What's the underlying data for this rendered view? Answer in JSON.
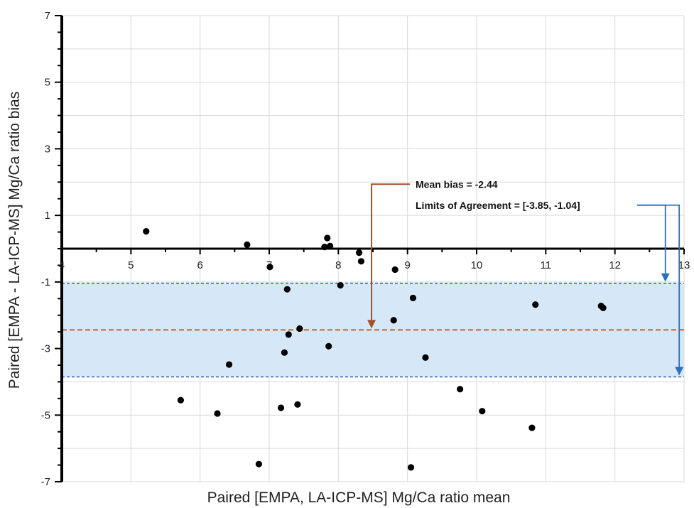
{
  "chart_data": {
    "type": "scatter",
    "xlabel": "Paired [EMPA, LA-ICP-MS] Mg/Ca ratio mean",
    "ylabel": "Paired [EMPA - LA-ICP-MS] Mg/Ca ratio bias",
    "xlim": [
      4,
      13
    ],
    "ylim": [
      -7,
      7
    ],
    "x_ticks": [
      "4",
      "5",
      "6",
      "7",
      "8",
      "9",
      "10",
      "11",
      "12",
      "13"
    ],
    "y_ticks": [
      "-7",
      "-5",
      "-3",
      "-1",
      "1",
      "3",
      "5",
      "7"
    ],
    "grid": true,
    "points": [
      {
        "x": 5.22,
        "y": 0.52
      },
      {
        "x": 5.72,
        "y": -4.55
      },
      {
        "x": 6.25,
        "y": -4.95
      },
      {
        "x": 6.42,
        "y": -3.48
      },
      {
        "x": 6.68,
        "y": 0.12
      },
      {
        "x": 6.85,
        "y": -6.47
      },
      {
        "x": 7.01,
        "y": -0.55
      },
      {
        "x": 7.17,
        "y": -4.78
      },
      {
        "x": 7.22,
        "y": -3.12
      },
      {
        "x": 7.26,
        "y": -1.22
      },
      {
        "x": 7.28,
        "y": -2.58
      },
      {
        "x": 7.41,
        "y": -4.68
      },
      {
        "x": 7.44,
        "y": -2.4
      },
      {
        "x": 7.8,
        "y": 0.05
      },
      {
        "x": 7.84,
        "y": 0.32
      },
      {
        "x": 7.86,
        "y": -2.93
      },
      {
        "x": 7.88,
        "y": 0.08
      },
      {
        "x": 8.03,
        "y": -1.1
      },
      {
        "x": 8.3,
        "y": -0.12
      },
      {
        "x": 8.33,
        "y": -0.38
      },
      {
        "x": 8.8,
        "y": -2.15
      },
      {
        "x": 8.82,
        "y": -0.63
      },
      {
        "x": 9.05,
        "y": -6.57
      },
      {
        "x": 9.08,
        "y": -1.48
      },
      {
        "x": 9.26,
        "y": -3.27
      },
      {
        "x": 9.76,
        "y": -4.22
      },
      {
        "x": 10.08,
        "y": -4.88
      },
      {
        "x": 10.8,
        "y": -5.38
      },
      {
        "x": 10.85,
        "y": -1.68
      },
      {
        "x": 11.8,
        "y": -1.72
      },
      {
        "x": 11.83,
        "y": -1.78
      }
    ],
    "mean_bias": -2.44,
    "limits_of_agreement": [
      -3.85,
      -1.04
    ],
    "annotations": {
      "mean_bias_text": "Mean bias = -2.44",
      "loa_text": "Limits of Agreement = [-3.85, -1.04]"
    },
    "colors": {
      "points": "#000000",
      "grid": "#d9d9d9",
      "zero_line": "#000000",
      "band_fill": "#d6e8f7",
      "loa_line": "#2f6fbf",
      "mean_line": "#c0703a",
      "mean_arrow": "#a0522d",
      "loa_arrow": "#2f6fbf"
    }
  }
}
